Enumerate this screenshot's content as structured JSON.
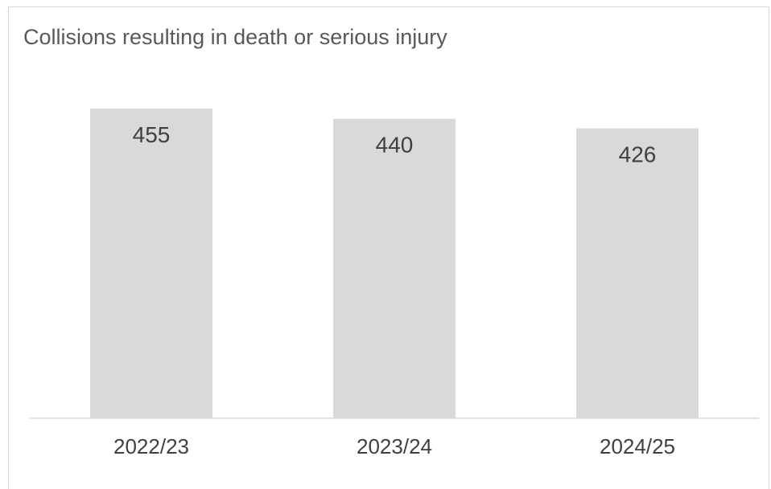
{
  "chart_data": {
    "type": "bar",
    "title": "Collisions resulting in death or serious injury",
    "categories": [
      "2022/23",
      "2023/24",
      "2024/25"
    ],
    "values": [
      455,
      440,
      426
    ],
    "data_labels": [
      "455",
      "440",
      "426"
    ],
    "xlabel": "",
    "ylabel": "",
    "ylim": [
      0,
      455
    ],
    "grid": false,
    "legend": "none",
    "colors": {
      "bar": "#d9d9d9",
      "text": "#404040",
      "title": "#595959",
      "axis": "#d9d9d9"
    }
  }
}
